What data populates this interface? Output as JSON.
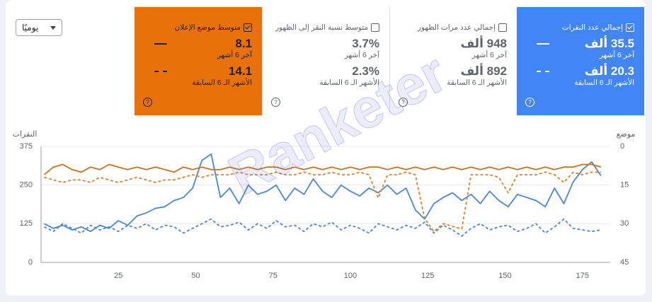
{
  "control": {
    "period": "يوميًا"
  },
  "cards": [
    {
      "label": "إجمالي عدد النقرات",
      "checked": true,
      "color": "#4285f4",
      "current": "35.5 ألف",
      "current_period": "آخر 6 أشهر",
      "previous": "20.3 ألف",
      "previous_period": "الأشهر الـ 6 السابقة"
    },
    {
      "label": "إجمالي عدد مرات الظهور",
      "checked": false,
      "current": "948 ألف",
      "current_period": "آخر 6 أشهر",
      "previous": "892 ألف",
      "previous_period": "الأشهر الـ 6 السابقة"
    },
    {
      "label": "متوسط نسبة النقر إلى الظهور",
      "checked": false,
      "current": "3.7%",
      "current_period": "آخر 6 أشهر",
      "previous": "2.3%",
      "previous_period": "الأشهر الـ 6 السابقة"
    },
    {
      "label": "متوسط موضع الإعلان",
      "checked": true,
      "color": "#e8710a",
      "current": "8.1",
      "current_period": "آخر 6 أشهر",
      "previous": "14.1",
      "previous_period": "الأشهر الـ 6 السابقة"
    }
  ],
  "watermark": "Ranketer",
  "chart_data": {
    "type": "line",
    "ylabel": "النقرات",
    "y2label": "موضع",
    "xlim": [
      0,
      184
    ],
    "xticks": [
      25,
      50,
      75,
      100,
      125,
      150,
      175
    ],
    "ylim": [
      0,
      375
    ],
    "yticks": [
      0,
      125,
      250,
      375
    ],
    "y2lim": [
      45,
      0
    ],
    "y2ticks": [
      0,
      15,
      30,
      45
    ],
    "x": [
      1,
      4,
      7,
      10,
      13,
      16,
      19,
      22,
      25,
      28,
      31,
      34,
      37,
      40,
      43,
      46,
      49,
      52,
      55,
      58,
      61,
      64,
      67,
      70,
      73,
      76,
      79,
      82,
      85,
      88,
      91,
      94,
      97,
      100,
      103,
      106,
      109,
      112,
      115,
      118,
      121,
      124,
      127,
      130,
      133,
      136,
      139,
      142,
      145,
      148,
      151,
      154,
      157,
      160,
      163,
      166,
      169,
      172,
      175,
      178,
      181
    ],
    "series": [
      {
        "color": "#4a86d8",
        "dashed": false,
        "values": [
          125,
          110,
          120,
          105,
          115,
          100,
          120,
          110,
          135,
          120,
          150,
          160,
          175,
          180,
          200,
          210,
          240,
          330,
          350,
          210,
          240,
          190,
          250,
          220,
          230,
          250,
          200,
          240,
          220,
          270,
          230,
          210,
          250,
          230,
          215,
          240,
          225,
          250,
          220,
          240,
          170,
          140,
          190,
          210,
          225,
          200,
          220,
          190,
          230,
          200,
          180,
          220,
          210,
          200,
          180,
          240,
          190,
          260,
          300,
          325,
          280
        ]
      },
      {
        "color": "#4a86d8",
        "dashed": true,
        "values": [
          115,
          100,
          125,
          110,
          95,
          120,
          105,
          115,
          100,
          120,
          110,
          125,
          105,
          120,
          115,
          95,
          110,
          125,
          140,
          115,
          120,
          130,
          105,
          125,
          110,
          135,
          115,
          120,
          100,
          125,
          115,
          130,
          105,
          120,
          110,
          95,
          125,
          115,
          105,
          120,
          110,
          130,
          95,
          120,
          105,
          85,
          110,
          125,
          105,
          115,
          120,
          100,
          110,
          125,
          95,
          115,
          140,
          110,
          105,
          100,
          105
        ]
      },
      {
        "color": "#c8741c",
        "dashed": false,
        "axis": "y2",
        "values": [
          11,
          8,
          7,
          9,
          10,
          8,
          9,
          7,
          8,
          9,
          8,
          9,
          8,
          9,
          10,
          8,
          9,
          8,
          9,
          9,
          8,
          9,
          8,
          9,
          8,
          8,
          9,
          8,
          9,
          8,
          9,
          8,
          9,
          8,
          9,
          8,
          8,
          9,
          8,
          9,
          8,
          9,
          8,
          9,
          8,
          9,
          8,
          9,
          8,
          9,
          8,
          9,
          8,
          9,
          8,
          9,
          8,
          8,
          7,
          7,
          8
        ]
      },
      {
        "color": "#d9822b",
        "dashed": true,
        "axis": "y2",
        "values": [
          12,
          13,
          14,
          13,
          13,
          14,
          12,
          13,
          14,
          13,
          12,
          13,
          14,
          13,
          13,
          12,
          11,
          12,
          11,
          11,
          11,
          10,
          11,
          11,
          11,
          10,
          11,
          11,
          10,
          11,
          11,
          10,
          11,
          11,
          10,
          11,
          20,
          11,
          11,
          10,
          11,
          28,
          33,
          30,
          31,
          32,
          11,
          11,
          11,
          12,
          18,
          11,
          11,
          11,
          10,
          11,
          14,
          10,
          11,
          10,
          10
        ]
      }
    ]
  }
}
